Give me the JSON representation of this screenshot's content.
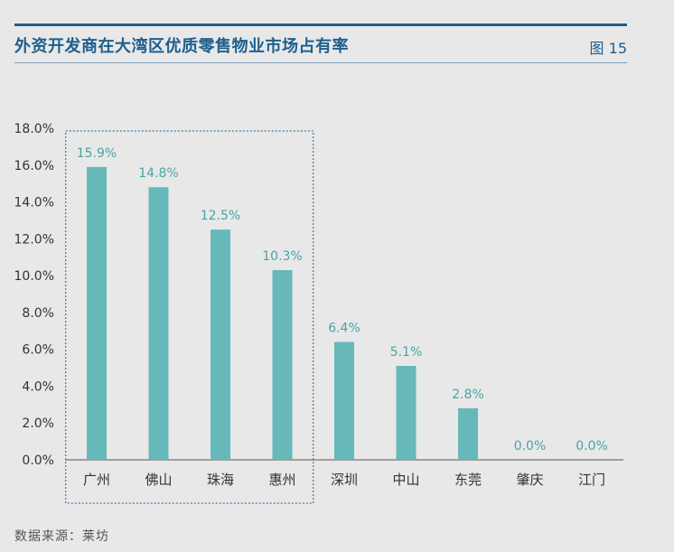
{
  "header": {
    "title": "外资开发商在大湾区优质零售物业市场占有率",
    "figure_label": "图 15"
  },
  "footer": {
    "source": "数据来源：莱坊"
  },
  "colors": {
    "bar": "#66b8b9",
    "label": "#4aa3a4",
    "axis_text": "#333333",
    "highlight_box": "#1d5f8d"
  },
  "chart_data": {
    "type": "bar",
    "categories": [
      "广州",
      "佛山",
      "珠海",
      "惠州",
      "深圳",
      "中山",
      "东莞",
      "肇庆",
      "江门"
    ],
    "values": [
      15.9,
      14.8,
      12.5,
      10.3,
      6.4,
      5.1,
      2.8,
      0.0,
      0.0
    ],
    "data_labels": [
      "15.9%",
      "14.8%",
      "12.5%",
      "10.3%",
      "6.4%",
      "5.1%",
      "2.8%",
      "0.0%",
      "0.0%"
    ],
    "yticks": [
      "0.0%",
      "2.0%",
      "4.0%",
      "6.0%",
      "8.0%",
      "10.0%",
      "12.0%",
      "14.0%",
      "16.0%",
      "18.0%"
    ],
    "ylim": [
      0,
      18
    ],
    "grid": false,
    "highlighted_categories": [
      "广州",
      "佛山",
      "珠海",
      "惠州"
    ]
  }
}
